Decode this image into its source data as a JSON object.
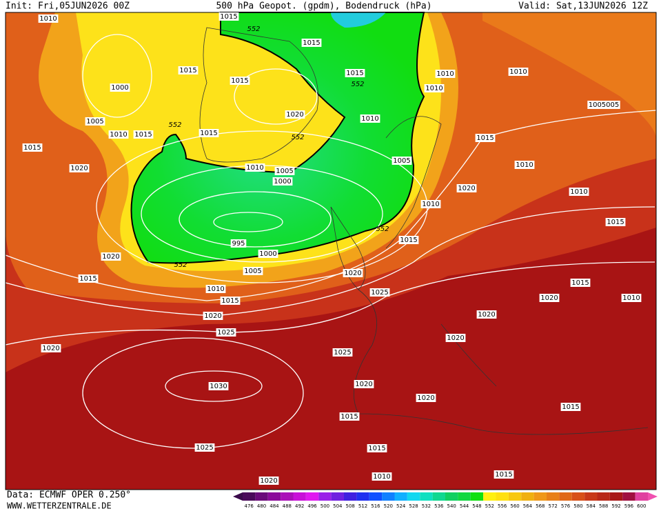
{
  "header": {
    "init": "Init: Fri,05JUN2026 00Z",
    "title": "500 hPa Geopot. (gpdm), Bodendruck (hPa)",
    "valid": "Valid: Sat,13JUN2026 12Z"
  },
  "footer": {
    "source": "Data: ECMWF OPER 0.250°",
    "website": "WWW.WETTERZENTRALE.DE"
  },
  "color_scale": [
    476,
    480,
    484,
    488,
    492,
    496,
    500,
    504,
    508,
    512,
    516,
    520,
    524,
    528,
    532,
    536,
    540,
    544,
    548,
    552,
    556,
    560,
    564,
    568,
    572,
    576,
    580,
    584,
    588,
    592,
    596,
    600
  ],
  "isobar_labels": [
    "1010",
    "1015",
    "552",
    "1015",
    "1000",
    "1015",
    "1015",
    "1015",
    "552",
    "1010",
    "1010",
    "1010",
    "1005",
    "1010",
    "1015",
    "552",
    "1015",
    "1020",
    "552",
    "1010",
    "1005005",
    "1015",
    "1015",
    "1020",
    "1010",
    "1005",
    "1000",
    "1005",
    "1010",
    "1020",
    "1010",
    "1010",
    "552",
    "1015",
    "1015",
    "995",
    "1000",
    "1020",
    "552",
    "1005",
    "1015",
    "1020",
    "1010",
    "1015",
    "1025",
    "1015",
    "1020",
    "1010",
    "1020",
    "1020",
    "1025",
    "1020",
    "1020",
    "1025",
    "1020",
    "1030",
    "1020",
    "1015",
    "1015",
    "1015",
    "1025",
    "1015",
    "1010",
    "1020"
  ]
}
